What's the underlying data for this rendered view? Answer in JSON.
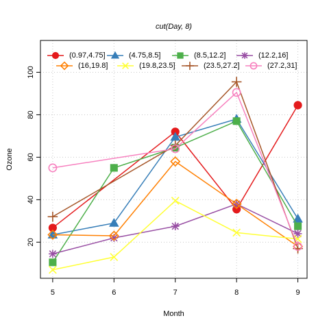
{
  "chart_data": {
    "type": "line",
    "title": "",
    "xlabel": "Month",
    "ylabel": "Ozone",
    "xlim": [
      4.8,
      9.15
    ],
    "ylim": [
      3,
      115
    ],
    "x": [
      5,
      6,
      7,
      8,
      9
    ],
    "xticks": [
      5,
      6,
      7,
      8,
      9
    ],
    "yticks": [
      20,
      40,
      60,
      80,
      100
    ],
    "grid": true,
    "legend": {
      "title": "cut(Day, 8)",
      "placement": "top"
    },
    "series": [
      {
        "name": "(0.97,4.75]",
        "color": "#E41A1C",
        "marker": "filled-circle",
        "values": [
          26.75,
          null,
          72,
          35.5,
          84.5
        ]
      },
      {
        "name": "(4.75,8.5]",
        "color": "#377EB8",
        "marker": "filled-triangle",
        "values": [
          23.5,
          29,
          69.5,
          78,
          31
        ]
      },
      {
        "name": "(8.5,12.2]",
        "color": "#4DAF4A",
        "marker": "filled-square",
        "values": [
          10.5,
          55,
          64.5,
          77,
          27.5
        ]
      },
      {
        "name": "(12.2,16]",
        "color": "#984EA3",
        "marker": "asterisk",
        "values": [
          14.5,
          22,
          27.5,
          38,
          24
        ]
      },
      {
        "name": "(16,19.8]",
        "color": "#FF7F00",
        "marker": "open-diamond",
        "values": [
          23.5,
          23,
          58,
          38,
          18
        ]
      },
      {
        "name": "(19.8,23.5]",
        "color": "#FFFF33",
        "marker": "x",
        "values": [
          7,
          13,
          39.5,
          24.5,
          21.5
        ]
      },
      {
        "name": "(23.5,27.2]",
        "color": "#A65628",
        "marker": "plus",
        "values": [
          32,
          null,
          65.5,
          95.5,
          17
        ]
      },
      {
        "name": "(27.2,31]",
        "color": "#F781BF",
        "marker": "open-circle",
        "values": [
          55,
          null,
          64,
          90.5,
          18
        ]
      }
    ]
  }
}
